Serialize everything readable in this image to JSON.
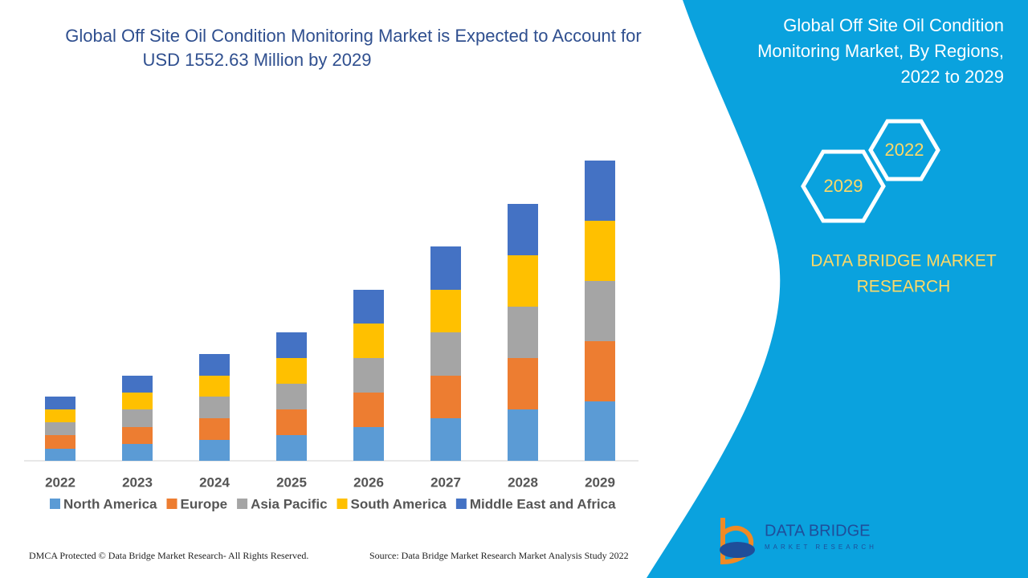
{
  "chart_data": {
    "type": "bar",
    "stacked": true,
    "title": "Global Off Site Oil Condition Monitoring Market is Expected to Account for USD 1552.63 Million by 2029",
    "categories": [
      "2022",
      "2023",
      "2024",
      "2025",
      "2026",
      "2027",
      "2028",
      "2029"
    ],
    "series": [
      {
        "name": "North America",
        "color": "#5b9bd5",
        "values": [
          15,
          21,
          26,
          32,
          42,
          53,
          64,
          74
        ]
      },
      {
        "name": "Europe",
        "color": "#ed7d31",
        "values": [
          17,
          21,
          27,
          32,
          43,
          53,
          64,
          75
        ]
      },
      {
        "name": "Asia Pacific",
        "color": "#a5a5a5",
        "values": [
          16,
          22,
          27,
          32,
          43,
          54,
          64,
          75
        ]
      },
      {
        "name": "South America",
        "color": "#ffc000",
        "values": [
          16,
          21,
          26,
          32,
          43,
          53,
          64,
          75
        ]
      },
      {
        "name": "Middle East and Africa",
        "color": "#4472c4",
        "values": [
          16,
          21,
          27,
          32,
          42,
          54,
          64,
          75
        ]
      }
    ],
    "legend": "bottom"
  },
  "sidebar": {
    "title": [
      "Global Off Site Oil Condition",
      "Monitoring Market, By Regions,",
      "2022 to 2029"
    ],
    "hex_back": "2022",
    "hex_front": "2029",
    "brand": [
      "DATA BRIDGE MARKET",
      "RESEARCH"
    ],
    "logo": "DATA BRIDGE",
    "logo_sub": "MARKET RESEARCH"
  },
  "footer": {
    "left": "DMCA Protected © Data Bridge Market Research- All Rights Reserved.",
    "right": "Source: Data Bridge Market Research Market Analysis Study 2022"
  }
}
